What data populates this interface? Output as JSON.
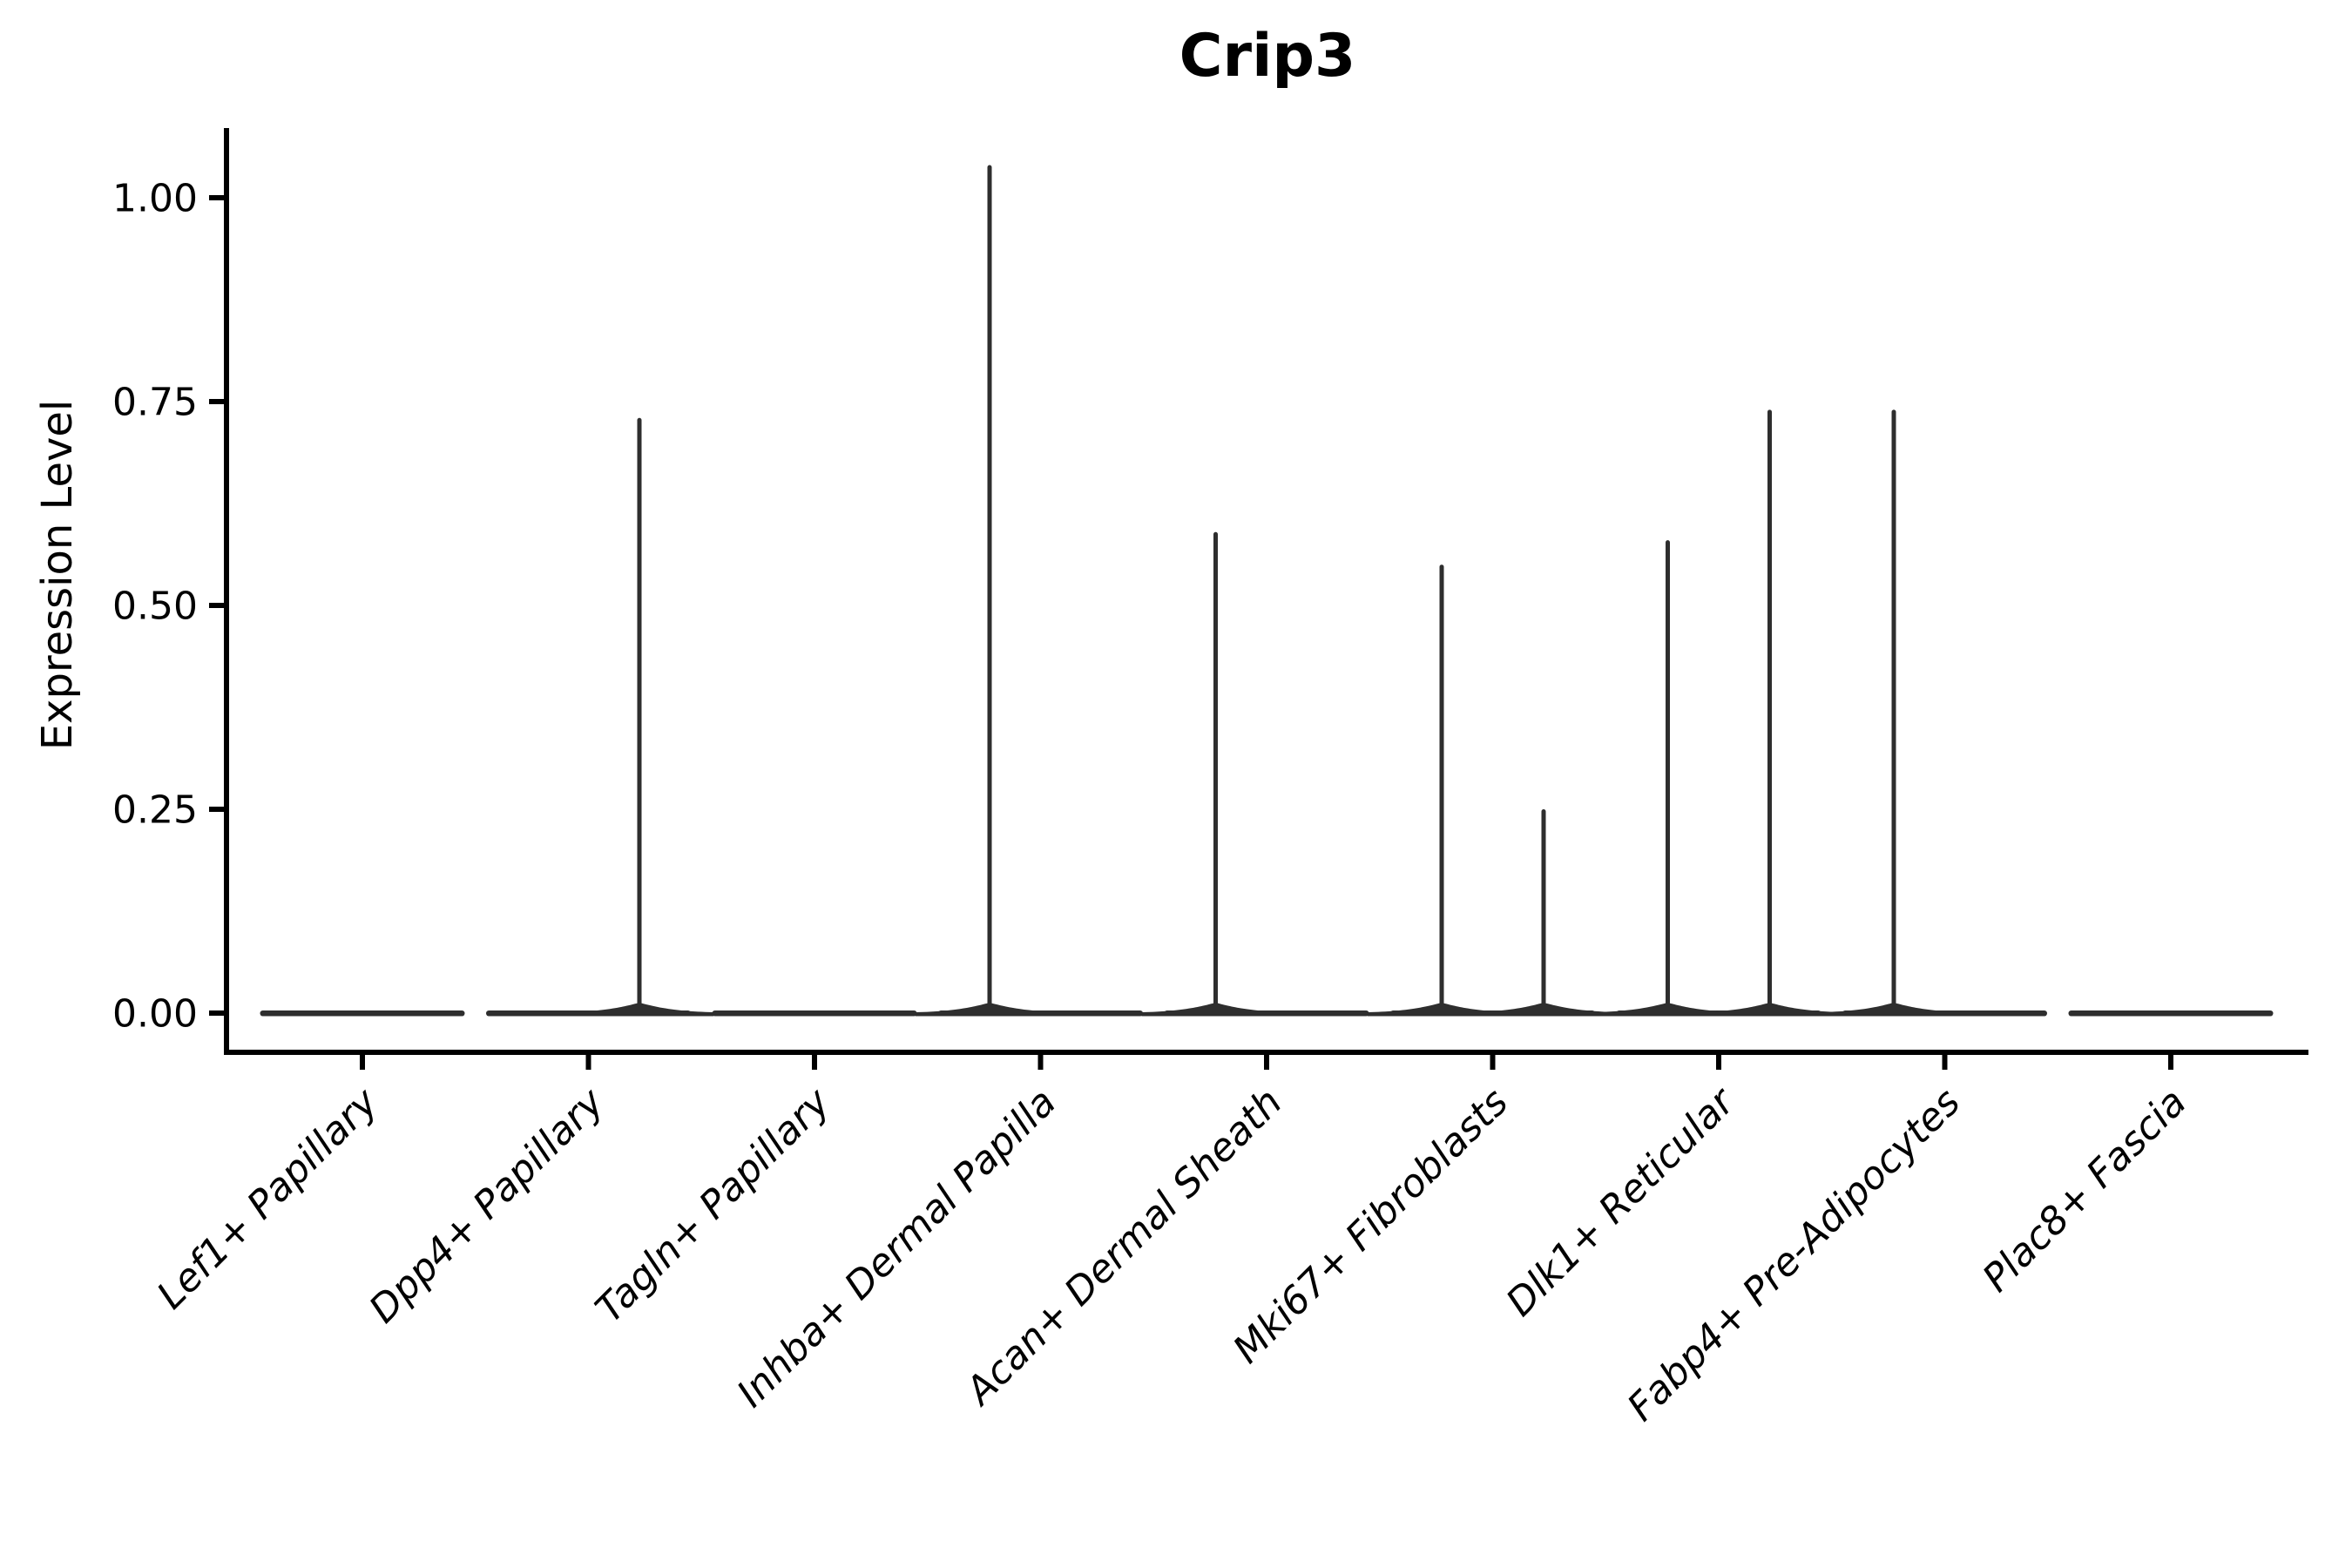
{
  "chart_data": {
    "type": "violin",
    "title": "Crip3",
    "ylabel": "Expression Level",
    "xlabel": "",
    "ylim": [
      -0.05,
      1.09
    ],
    "yticks": [
      0,
      0.25,
      0.5,
      0.75,
      1.0
    ],
    "ytick_labels": [
      "0.00",
      "0.25",
      "0.50",
      "0.75",
      "1.00"
    ],
    "grid": false,
    "legend": "none",
    "background": "#ffffff",
    "axis_color": "#000000",
    "violin_color": "#2e2e2e",
    "x_labels_italic": true,
    "x_label_rotation_deg": 45,
    "sub_violins_per_category": 2,
    "categories": [
      "Lef1+ Papillary",
      "Dpp4+ Papillary",
      "Tagln+ Papillary",
      "Inhba+ Dermal Papilla",
      "Acan+ Dermal Sheath",
      "Mki67+ Fibroblasts",
      "Dlk1+ Reticular",
      "Fabp4+ Pre-Adipocytes",
      "Plac8+ Fascia"
    ],
    "violins": [
      {
        "category": "Lef1+ Papillary",
        "baseline": 0,
        "spikes": []
      },
      {
        "category": "Dpp4+ Papillary",
        "baseline": 0,
        "spikes": [
          {
            "side": "right",
            "max": 0.73
          }
        ]
      },
      {
        "category": "Tagln+ Papillary",
        "baseline": 0,
        "spikes": []
      },
      {
        "category": "Inhba+ Dermal Papilla",
        "baseline": 0,
        "spikes": [
          {
            "side": "left",
            "max": 1.04
          }
        ]
      },
      {
        "category": "Acan+ Dermal Sheath",
        "baseline": 0,
        "spikes": [
          {
            "side": "left",
            "max": 0.59
          }
        ]
      },
      {
        "category": "Mki67+ Fibroblasts",
        "baseline": 0,
        "spikes": [
          {
            "side": "left",
            "max": 0.55
          },
          {
            "side": "right",
            "max": 0.25
          }
        ]
      },
      {
        "category": "Dlk1+ Reticular",
        "baseline": 0,
        "spikes": [
          {
            "side": "left",
            "max": 0.58
          },
          {
            "side": "right",
            "max": 0.74
          }
        ]
      },
      {
        "category": "Fabp4+ Pre-Adipocytes",
        "baseline": 0,
        "spikes": [
          {
            "side": "left",
            "max": 0.74
          }
        ]
      },
      {
        "category": "Plac8+ Fascia",
        "baseline": 0,
        "spikes": []
      }
    ]
  }
}
